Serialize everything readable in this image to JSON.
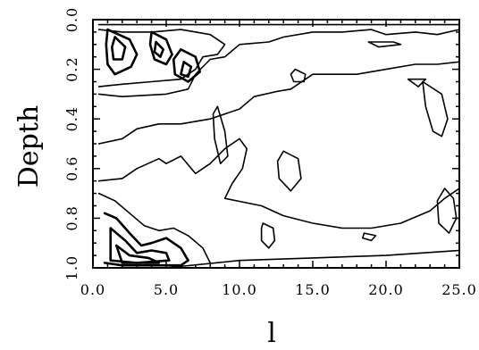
{
  "chart_data": {
    "type": "contour",
    "xlabel": "l",
    "ylabel": "Depth",
    "xlim": [
      0,
      25
    ],
    "ylim": [
      1.0,
      0.0
    ],
    "x_ticks": [
      "0.0",
      "5.0",
      "10.0",
      "15.0",
      "20.0",
      "25.0"
    ],
    "y_ticks": [
      "0.0",
      "0.2",
      "0.4",
      "0.6",
      "0.8",
      "1.0"
    ],
    "grid": false,
    "legend": "none",
    "contours": [
      {
        "level_index": 1,
        "points": [
          [
            0.4,
            0.02
          ],
          [
            25,
            0.02
          ]
        ]
      },
      {
        "level_index": 1,
        "points": [
          [
            0.4,
            0.3
          ],
          [
            2,
            0.31
          ],
          [
            5,
            0.3
          ],
          [
            6.5,
            0.28
          ],
          [
            7,
            0.22
          ],
          [
            8,
            0.16
          ],
          [
            9,
            0.15
          ],
          [
            10,
            0.1
          ],
          [
            12,
            0.09
          ],
          [
            13,
            0.07
          ],
          [
            15,
            0.05
          ],
          [
            17,
            0.05
          ],
          [
            19,
            0.04
          ],
          [
            20,
            0.06
          ],
          [
            22,
            0.05
          ],
          [
            23.5,
            0.06
          ],
          [
            25,
            0.04
          ]
        ]
      },
      {
        "level_index": 1,
        "points": [
          [
            0.4,
            0.5
          ],
          [
            2,
            0.48
          ],
          [
            3,
            0.44
          ],
          [
            4.5,
            0.42
          ],
          [
            6,
            0.42
          ],
          [
            8,
            0.4
          ],
          [
            10,
            0.36
          ],
          [
            11,
            0.31
          ],
          [
            12.5,
            0.29
          ],
          [
            13.5,
            0.28
          ],
          [
            15,
            0.22
          ],
          [
            17,
            0.22
          ],
          [
            18,
            0.22
          ],
          [
            20,
            0.2
          ],
          [
            22,
            0.18
          ],
          [
            23.5,
            0.18
          ],
          [
            25,
            0.17
          ]
        ]
      },
      {
        "level_index": 1,
        "points": [
          [
            0.4,
            0.65
          ],
          [
            2,
            0.64
          ],
          [
            3,
            0.6
          ],
          [
            4.5,
            0.56
          ],
          [
            5,
            0.58
          ],
          [
            6,
            0.55
          ],
          [
            7,
            0.62
          ],
          [
            8,
            0.58
          ],
          [
            9,
            0.52
          ],
          [
            10,
            0.48
          ],
          [
            10.5,
            0.52
          ],
          [
            10.2,
            0.6
          ],
          [
            9.5,
            0.66
          ],
          [
            9,
            0.72
          ],
          [
            11.5,
            0.75
          ],
          [
            13,
            0.79
          ],
          [
            15,
            0.82
          ],
          [
            17,
            0.84
          ],
          [
            19,
            0.84
          ],
          [
            21,
            0.82
          ],
          [
            23,
            0.77
          ],
          [
            24,
            0.72
          ],
          [
            25,
            0.68
          ]
        ]
      },
      {
        "level_index": 1,
        "points": [
          [
            5,
            1.0
          ],
          [
            10,
            0.97
          ],
          [
            15,
            0.96
          ],
          [
            20,
            0.95
          ],
          [
            25,
            0.93
          ]
        ]
      },
      {
        "level_index": 1,
        "points": [
          [
            8.5,
            0.35
          ],
          [
            9,
            0.45
          ],
          [
            9.2,
            0.55
          ],
          [
            8.7,
            0.58
          ],
          [
            8.3,
            0.48
          ],
          [
            8.2,
            0.38
          ],
          [
            8.5,
            0.35
          ]
        ]
      },
      {
        "level_index": 1,
        "points": [
          [
            13,
            0.53
          ],
          [
            14,
            0.56
          ],
          [
            14.2,
            0.64
          ],
          [
            13.5,
            0.69
          ],
          [
            12.7,
            0.64
          ],
          [
            12.6,
            0.57
          ],
          [
            13,
            0.53
          ]
        ]
      },
      {
        "level_index": 1,
        "points": [
          [
            22.5,
            0.25
          ],
          [
            23.8,
            0.3
          ],
          [
            24.2,
            0.4
          ],
          [
            23.8,
            0.47
          ],
          [
            23.2,
            0.45
          ],
          [
            22.7,
            0.35
          ],
          [
            22.5,
            0.25
          ]
        ]
      },
      {
        "level_index": 1,
        "points": [
          [
            24,
            0.68
          ],
          [
            24.6,
            0.72
          ],
          [
            24.8,
            0.8
          ],
          [
            24.3,
            0.86
          ],
          [
            23.6,
            0.82
          ],
          [
            23.5,
            0.73
          ],
          [
            24,
            0.68
          ]
        ]
      },
      {
        "level_index": 2,
        "points": [
          [
            0.4,
            0.04
          ],
          [
            2,
            0.05
          ],
          [
            4,
            0.05
          ],
          [
            6,
            0.04
          ],
          [
            8,
            0.06
          ],
          [
            9,
            0.1
          ],
          [
            8.5,
            0.14
          ],
          [
            7.5,
            0.15
          ],
          [
            7,
            0.2
          ],
          [
            6,
            0.24
          ],
          [
            4,
            0.25
          ],
          [
            2,
            0.26
          ],
          [
            0.4,
            0.27
          ]
        ]
      },
      {
        "level_index": 2,
        "points": [
          [
            0.4,
            0.7
          ],
          [
            1.5,
            0.73
          ],
          [
            2.5,
            0.78
          ],
          [
            3.5,
            0.83
          ],
          [
            4.5,
            0.85
          ],
          [
            5.5,
            0.84
          ],
          [
            6.5,
            0.87
          ],
          [
            7.5,
            0.92
          ],
          [
            8,
            0.98
          ]
        ]
      },
      {
        "level_index": 2,
        "points": [
          [
            11.6,
            0.82
          ],
          [
            12.3,
            0.84
          ],
          [
            12.4,
            0.89
          ],
          [
            12,
            0.92
          ],
          [
            11.5,
            0.89
          ],
          [
            11.5,
            0.84
          ],
          [
            11.6,
            0.82
          ]
        ]
      },
      {
        "level_index": 2,
        "points": [
          [
            13.8,
            0.2
          ],
          [
            14.5,
            0.22
          ],
          [
            14.4,
            0.25
          ],
          [
            13.7,
            0.25
          ],
          [
            13.5,
            0.22
          ],
          [
            13.8,
            0.2
          ]
        ]
      },
      {
        "level_index": 2,
        "points": [
          [
            18.5,
            0.86
          ],
          [
            19.3,
            0.87
          ],
          [
            19,
            0.89
          ],
          [
            18.4,
            0.88
          ],
          [
            18.5,
            0.86
          ]
        ]
      },
      {
        "level_index": 2,
        "points": [
          [
            18.8,
            0.09
          ],
          [
            20.5,
            0.09
          ],
          [
            21,
            0.1
          ],
          [
            19.5,
            0.11
          ],
          [
            18.8,
            0.09
          ]
        ]
      },
      {
        "level_index": 2,
        "points": [
          [
            21.5,
            0.24
          ],
          [
            22.7,
            0.24
          ],
          [
            22.2,
            0.27
          ],
          [
            21.5,
            0.24
          ]
        ]
      },
      {
        "level_index": 3,
        "points": [
          [
            1,
            0.04
          ],
          [
            2.5,
            0.08
          ],
          [
            3,
            0.14
          ],
          [
            2.6,
            0.19
          ],
          [
            1.5,
            0.22
          ],
          [
            1,
            0.18
          ],
          [
            0.9,
            0.1
          ],
          [
            1,
            0.04
          ]
        ]
      },
      {
        "level_index": 3,
        "points": [
          [
            4,
            0.05
          ],
          [
            5,
            0.08
          ],
          [
            5.4,
            0.14
          ],
          [
            5,
            0.18
          ],
          [
            4.2,
            0.16
          ],
          [
            3.9,
            0.1
          ],
          [
            4,
            0.05
          ]
        ]
      },
      {
        "level_index": 3,
        "points": [
          [
            6,
            0.12
          ],
          [
            7,
            0.15
          ],
          [
            7.3,
            0.21
          ],
          [
            6.5,
            0.25
          ],
          [
            5.6,
            0.22
          ],
          [
            5.5,
            0.16
          ],
          [
            6,
            0.12
          ]
        ]
      },
      {
        "level_index": 3,
        "points": [
          [
            0.8,
            0.78
          ],
          [
            1.6,
            0.8
          ],
          [
            2.5,
            0.86
          ],
          [
            3.3,
            0.91
          ],
          [
            4,
            0.9
          ],
          [
            5,
            0.88
          ],
          [
            6,
            0.92
          ],
          [
            6.5,
            0.97
          ],
          [
            6,
            0.99
          ],
          [
            4,
            0.99
          ],
          [
            2,
            0.99
          ],
          [
            0.8,
            0.98
          ]
        ]
      },
      {
        "level_index": 4,
        "points": [
          [
            1.5,
            0.07
          ],
          [
            2.2,
            0.11
          ],
          [
            2,
            0.16
          ],
          [
            1.4,
            0.16
          ],
          [
            1.3,
            0.11
          ],
          [
            1.5,
            0.07
          ]
        ]
      },
      {
        "level_index": 4,
        "points": [
          [
            4.3,
            0.09
          ],
          [
            4.8,
            0.12
          ],
          [
            4.6,
            0.15
          ],
          [
            4.2,
            0.13
          ],
          [
            4.3,
            0.09
          ]
        ]
      },
      {
        "level_index": 4,
        "points": [
          [
            6.2,
            0.17
          ],
          [
            6.7,
            0.19
          ],
          [
            6.5,
            0.23
          ],
          [
            6,
            0.22
          ],
          [
            6.2,
            0.17
          ]
        ]
      },
      {
        "level_index": 4,
        "points": [
          [
            1.2,
            0.84
          ],
          [
            2.2,
            0.89
          ],
          [
            3,
            0.94
          ],
          [
            4,
            0.93
          ],
          [
            5,
            0.94
          ],
          [
            5.2,
            0.97
          ],
          [
            3,
            0.98
          ],
          [
            1.2,
            0.97
          ],
          [
            1.2,
            0.84
          ]
        ]
      },
      {
        "level_index": 5,
        "points": [
          [
            1.6,
            0.91
          ],
          [
            2.5,
            0.95
          ],
          [
            3.8,
            0.96
          ],
          [
            4.5,
            0.98
          ],
          [
            2,
            0.98
          ],
          [
            1.6,
            0.91
          ]
        ]
      }
    ]
  }
}
